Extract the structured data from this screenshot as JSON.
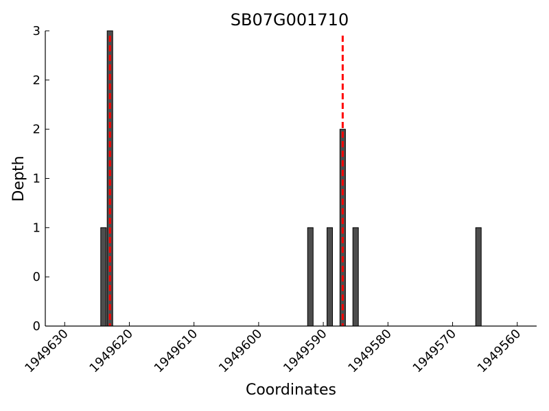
{
  "chart_data": {
    "type": "bar",
    "title": "SB07G001710",
    "xlabel": "Coordinates",
    "ylabel": "Depth",
    "x_reversed": true,
    "xlim": [
      1949633,
      1949557
    ],
    "ylim": [
      0,
      3
    ],
    "x_ticks": [
      1949630,
      1949620,
      1949610,
      1949600,
      1949590,
      1949580,
      1949570,
      1949560
    ],
    "x_tick_labels": [
      "1949630",
      "1949620",
      "1949610",
      "1949600",
      "1949590",
      "1949580",
      "1949570",
      "1949560"
    ],
    "y_ticks": [
      0,
      0.5,
      1,
      1.5,
      2,
      2.5,
      3
    ],
    "y_tick_labels": [
      "0",
      "0",
      "1",
      "1",
      "2",
      "2",
      "3"
    ],
    "grid": false,
    "bar_color": "#4d4d4d",
    "bar_edge_color": "#000000",
    "series": [
      {
        "x": [
          1949624,
          1949623,
          1949592,
          1949589,
          1949587,
          1949585,
          1949566
        ],
        "values": [
          1,
          3,
          1,
          1,
          2,
          1,
          1
        ]
      }
    ],
    "reference_lines": [
      {
        "x": 1949623,
        "color": "#ff0000",
        "style": "dashed"
      },
      {
        "x": 1949587,
        "color": "#ff0000",
        "style": "dashed"
      }
    ]
  }
}
